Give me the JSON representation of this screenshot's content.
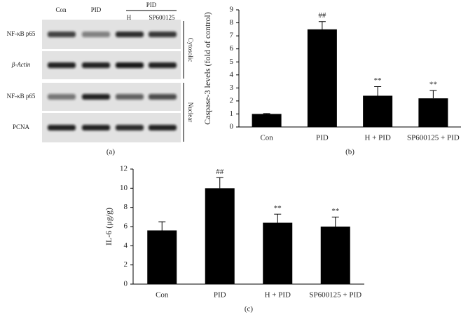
{
  "blot": {
    "columns": [
      "Con",
      "PID",
      "H",
      "SP600125"
    ],
    "group_label": "PID",
    "rows": [
      "NF-κB p65",
      "β-Actin",
      "NF-κB p65",
      "PCNA"
    ],
    "fractions": [
      "Cytosolic",
      "Nuclear"
    ],
    "panel_label": "(a)"
  },
  "chart_data": [
    {
      "type": "bar",
      "ylabel": "Caspase-3 levels (fold of control)",
      "panel_label": "(b)",
      "categories": [
        "Con",
        "PID",
        "H + PID",
        "SP600125 + PID"
      ],
      "values": [
        1.0,
        7.5,
        2.4,
        2.2
      ],
      "errors": [
        0.03,
        0.6,
        0.7,
        0.6
      ],
      "annotations": [
        null,
        "##",
        "**",
        "**"
      ],
      "color": "#000000",
      "ylim": [
        0,
        9
      ],
      "yticks": [
        0,
        1,
        2,
        3,
        4,
        5,
        6,
        7,
        8,
        9
      ]
    },
    {
      "type": "bar",
      "ylabel": "IL-6 (μg/g)",
      "panel_label": "(c)",
      "categories": [
        "Con",
        "PID",
        "H + PID",
        "SP600125 + PID"
      ],
      "values": [
        5.6,
        10.0,
        6.4,
        6.0
      ],
      "errors": [
        0.9,
        1.1,
        0.9,
        1.0
      ],
      "annotations": [
        null,
        "##",
        "**",
        "**"
      ],
      "color": "#000000",
      "ylim": [
        0,
        12
      ],
      "yticks": [
        0,
        2,
        4,
        6,
        8,
        10,
        12
      ]
    }
  ]
}
